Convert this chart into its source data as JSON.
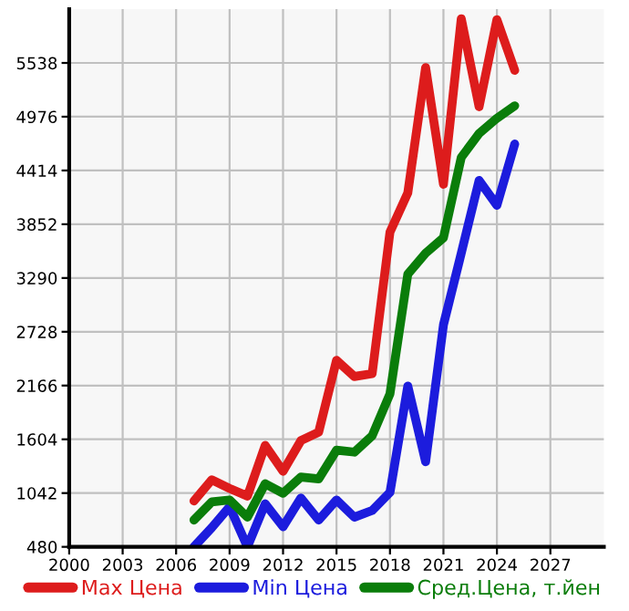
{
  "chart_data": {
    "type": "line",
    "x": [
      2007,
      2008,
      2009,
      2010,
      2011,
      2012,
      2013,
      2014,
      2015,
      2016,
      2017,
      2018,
      2019,
      2020,
      2021,
      2022,
      2023,
      2024,
      2025
    ],
    "series": [
      {
        "name": "Max Цена",
        "color": "#dd1c1c",
        "values": [
          960,
          1180,
          1090,
          1010,
          1540,
          1270,
          1590,
          1680,
          2430,
          2260,
          2290,
          3770,
          4180,
          5490,
          4270,
          6000,
          5080,
          5990,
          5460
        ]
      },
      {
        "name": "Min Цена",
        "color": "#1c1cdd",
        "values": [
          480,
          680,
          900,
          480,
          930,
          690,
          990,
          760,
          970,
          790,
          860,
          1050,
          2160,
          1370,
          2800,
          3550,
          4310,
          4050,
          4690
        ]
      },
      {
        "name": "Сред.Цена, т.йен",
        "color": "#0a7d0a",
        "values": [
          760,
          950,
          970,
          790,
          1140,
          1040,
          1210,
          1190,
          1490,
          1470,
          1640,
          2080,
          3330,
          3550,
          3710,
          4550,
          4800,
          4960,
          5090
        ]
      }
    ],
    "xlim": [
      2000,
      2030
    ],
    "xticks": [
      2000,
      2003,
      2006,
      2009,
      2012,
      2015,
      2018,
      2021,
      2024,
      2027
    ],
    "ylim": [
      480,
      6100
    ],
    "yticks": [
      480,
      1042,
      1604,
      2166,
      2728,
      3290,
      3852,
      4414,
      4976,
      5538
    ],
    "grid": true,
    "legend": "bottom",
    "marker": "none",
    "line_style": "solid"
  }
}
